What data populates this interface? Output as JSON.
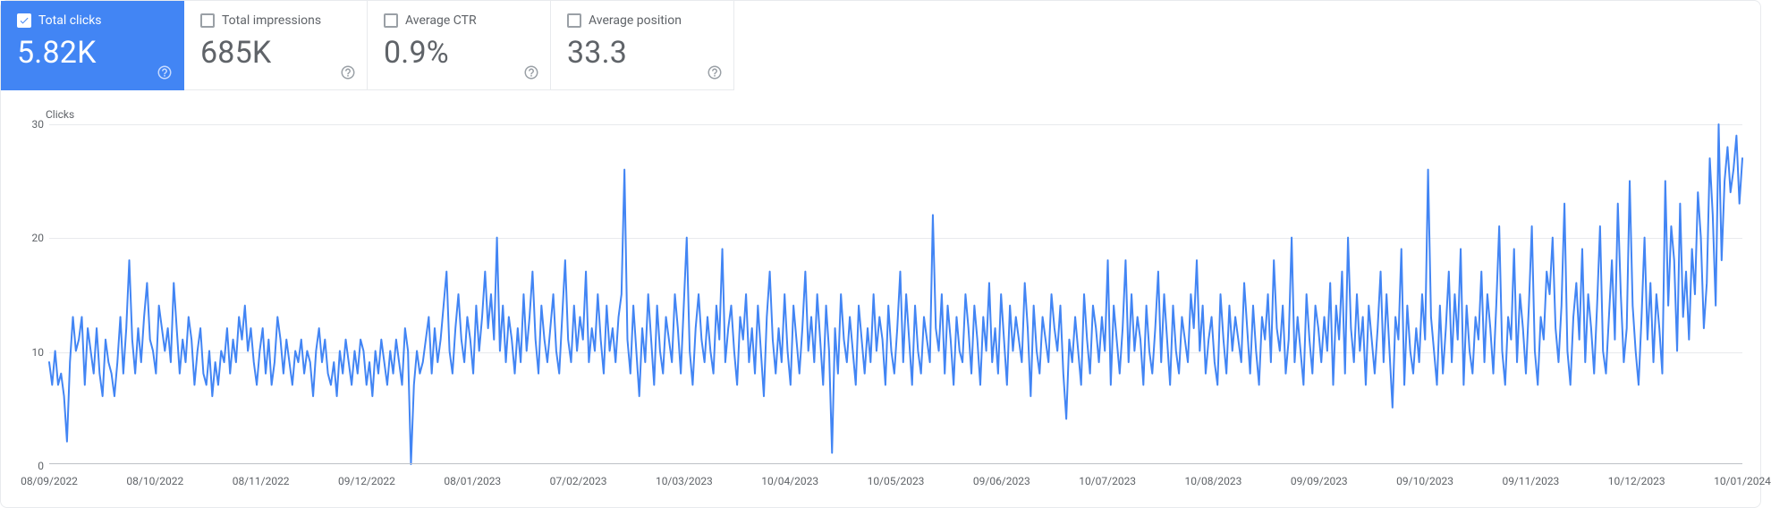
{
  "metrics": [
    {
      "id": "total-clicks",
      "label": "Total clicks",
      "value": "5.82K",
      "checked": true,
      "active": true
    },
    {
      "id": "total-impressions",
      "label": "Total impressions",
      "value": "685K",
      "checked": false,
      "active": false
    },
    {
      "id": "average-ctr",
      "label": "Average CTR",
      "value": "0.9%",
      "checked": false,
      "active": false
    },
    {
      "id": "average-position",
      "label": "Average position",
      "value": "33.3",
      "checked": false,
      "active": false
    }
  ],
  "chart": {
    "type": "line",
    "y_title": "Clicks",
    "ylim": [
      0,
      30
    ],
    "yticks": [
      0,
      10,
      20,
      30
    ],
    "line_color": "#4285f4",
    "line_width": 2,
    "grid_color": "#e8eaed",
    "baseline_color": "#bdc1c6",
    "background_color": "#ffffff",
    "tick_color": "#5f6368",
    "tick_fontsize": 12,
    "x_labels": [
      "08/09/2022",
      "08/10/2022",
      "08/11/2022",
      "09/12/2022",
      "08/01/2023",
      "07/02/2023",
      "10/03/2023",
      "10/04/2023",
      "10/05/2023",
      "09/06/2023",
      "10/07/2023",
      "10/08/2023",
      "09/09/2023",
      "09/10/2023",
      "09/11/2023",
      "10/12/2023",
      "10/01/2024"
    ],
    "values": [
      9,
      7,
      10,
      7,
      8,
      6,
      2,
      9,
      13,
      10,
      11,
      13,
      7,
      12,
      10,
      8,
      12,
      8,
      6,
      11,
      9,
      8,
      6,
      9,
      13,
      8,
      12,
      18,
      11,
      8,
      12,
      9,
      13,
      16,
      11,
      10,
      8,
      14,
      12,
      10,
      12,
      9,
      16,
      12,
      8,
      11,
      9,
      13,
      11,
      7,
      10,
      12,
      8,
      7,
      10,
      6,
      9,
      7,
      10,
      9,
      12,
      8,
      11,
      9,
      13,
      11,
      14,
      10,
      12,
      9,
      7,
      10,
      12,
      8,
      11,
      7,
      9,
      13,
      11,
      8,
      11,
      9,
      7,
      10,
      9,
      11,
      8,
      10,
      9,
      6,
      10,
      12,
      9,
      11,
      8,
      7,
      9,
      6,
      10,
      8,
      11,
      9,
      7,
      10,
      8,
      11,
      10,
      7,
      9,
      6,
      10,
      8,
      11,
      9,
      7,
      10,
      8,
      11,
      9,
      7,
      12,
      10,
      0,
      7,
      10,
      8,
      9,
      11,
      13,
      8,
      12,
      9,
      11,
      14,
      17,
      10,
      8,
      12,
      15,
      11,
      9,
      13,
      11,
      8,
      14,
      10,
      13,
      17,
      12,
      15,
      11,
      20,
      10,
      14,
      9,
      13,
      11,
      8,
      12,
      9,
      15,
      10,
      13,
      17,
      11,
      8,
      14,
      11,
      9,
      12,
      15,
      10,
      8,
      13,
      18,
      11,
      9,
      14,
      10,
      13,
      11,
      17,
      9,
      12,
      10,
      15,
      11,
      8,
      14,
      10,
      12,
      9,
      13,
      15,
      26,
      11,
      8,
      14,
      10,
      6,
      12,
      9,
      15,
      11,
      7,
      14,
      10,
      8,
      13,
      11,
      9,
      15,
      12,
      8,
      14,
      20,
      10,
      7,
      12,
      15,
      11,
      9,
      13,
      10,
      8,
      14,
      11,
      19,
      9,
      12,
      14,
      10,
      7,
      13,
      11,
      15,
      9,
      12,
      8,
      14,
      10,
      6,
      13,
      17,
      11,
      8,
      12,
      9,
      15,
      10,
      7,
      14,
      11,
      8,
      12,
      17,
      10,
      13,
      9,
      15,
      11,
      7,
      14,
      10,
      1,
      12,
      8,
      15,
      11,
      9,
      13,
      10,
      7,
      14,
      11,
      8,
      12,
      9,
      15,
      10,
      13,
      11,
      7,
      14,
      10,
      8,
      12,
      17,
      9,
      15,
      11,
      7,
      14,
      10,
      8,
      13,
      11,
      9,
      22,
      12,
      10,
      15,
      8,
      14,
      11,
      7,
      13,
      10,
      9,
      15,
      12,
      8,
      14,
      11,
      7,
      13,
      10,
      16,
      9,
      12,
      8,
      15,
      11,
      7,
      14,
      10,
      13,
      11,
      9,
      16,
      12,
      6,
      14,
      10,
      8,
      13,
      11,
      9,
      15,
      12,
      10,
      14,
      8,
      4,
      11,
      9,
      13,
      10,
      7,
      15,
      11,
      8,
      14,
      12,
      9,
      13,
      10,
      18,
      7,
      14,
      11,
      8,
      12,
      18,
      9,
      15,
      10,
      13,
      11,
      7,
      14,
      10,
      8,
      12,
      17,
      9,
      15,
      11,
      7,
      14,
      10,
      8,
      13,
      11,
      9,
      15,
      12,
      18,
      10,
      14,
      8,
      11,
      13,
      9,
      7,
      15,
      11,
      8,
      14,
      10,
      13,
      11,
      9,
      16,
      12,
      8,
      14,
      10,
      7,
      13,
      11,
      15,
      9,
      18,
      12,
      10,
      14,
      8,
      11,
      20,
      9,
      13,
      10,
      7,
      15,
      11,
      8,
      14,
      12,
      9,
      13,
      10,
      16,
      7,
      14,
      11,
      17,
      8,
      20,
      12,
      9,
      15,
      10,
      13,
      7,
      14,
      11,
      8,
      12,
      17,
      9,
      15,
      10,
      5,
      13,
      11,
      19,
      7,
      14,
      10,
      8,
      12,
      9,
      15,
      11,
      26,
      13,
      10,
      7,
      14,
      8,
      12,
      17,
      9,
      15,
      11,
      19,
      7,
      14,
      10,
      8,
      13,
      11,
      17,
      9,
      15,
      12,
      8,
      14,
      21,
      10,
      7,
      13,
      11,
      19,
      9,
      15,
      12,
      8,
      14,
      21,
      10,
      7,
      13,
      11,
      17,
      15,
      20,
      12,
      9,
      14,
      23,
      10,
      7,
      13,
      16,
      11,
      19,
      9,
      15,
      12,
      8,
      14,
      21,
      10,
      8,
      13,
      18,
      11,
      23,
      15,
      9,
      12,
      25,
      14,
      10,
      7,
      13,
      20,
      11,
      16,
      9,
      15,
      12,
      8,
      25,
      14,
      21,
      18,
      10,
      23,
      13,
      17,
      11,
      19,
      15,
      24,
      20,
      12,
      16,
      27,
      22,
      14,
      30,
      18,
      25,
      28,
      24,
      26,
      29,
      23,
      27
    ]
  }
}
